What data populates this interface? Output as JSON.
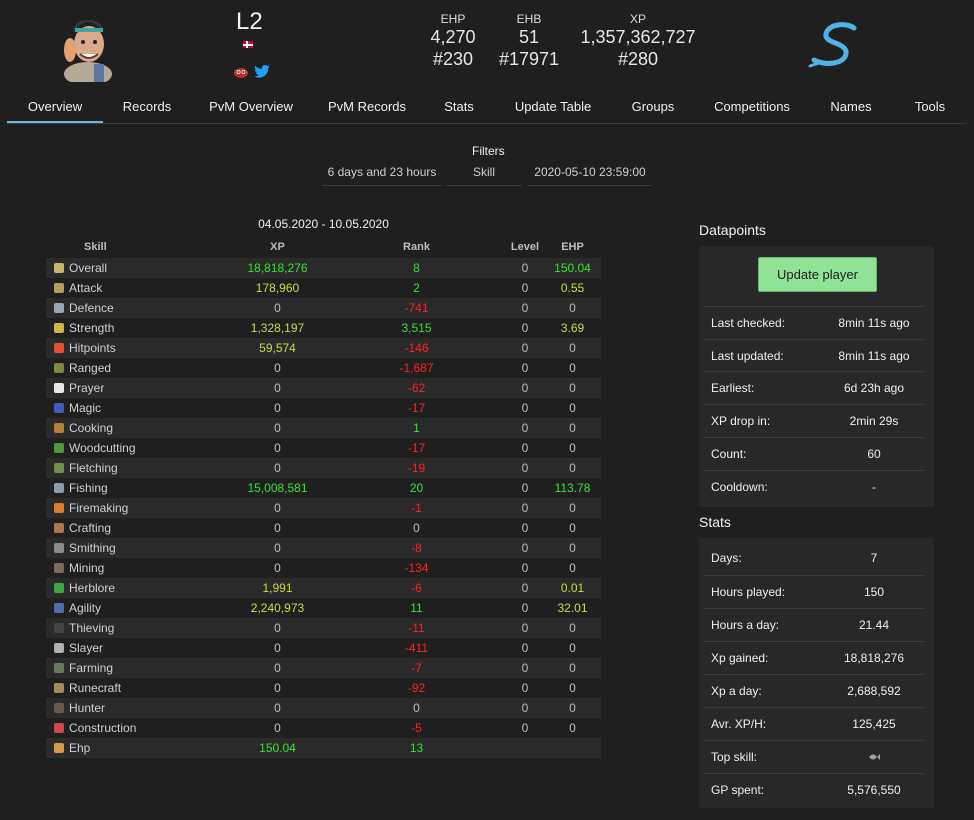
{
  "player": {
    "name": "L2",
    "flag_country": "Norway"
  },
  "stats": {
    "ehp_label": "EHP",
    "ehp_value": "4,270",
    "ehp_rank": "#230",
    "ehb_label": "EHB",
    "ehb_value": "51",
    "ehb_rank": "#17971",
    "xp_label": "XP",
    "xp_value": "1,357,362,727",
    "xp_rank": "#280"
  },
  "nav": {
    "tabs": [
      {
        "label": "Overview",
        "active": true
      },
      {
        "label": "Records"
      },
      {
        "label": "PvM Overview"
      },
      {
        "label": "PvM Records"
      },
      {
        "label": "Stats"
      },
      {
        "label": "Update Table"
      },
      {
        "label": "Groups"
      },
      {
        "label": "Competitions"
      },
      {
        "label": "Names"
      },
      {
        "label": "Tools"
      }
    ]
  },
  "filters": {
    "title": "Filters",
    "period": "6 days and 23 hours",
    "type": "Skill",
    "date": "2020-05-10 23:59:00"
  },
  "table": {
    "date_range": "04.05.2020 - 10.05.2020",
    "headers": {
      "skill": "Skill",
      "xp": "XP",
      "rank": "Rank",
      "level": "Level",
      "ehp": "EHP"
    },
    "rows": [
      {
        "skill": "Overall",
        "xp": "18,818,276",
        "rank": "8",
        "level": "0",
        "ehp": "150.04"
      },
      {
        "skill": "Attack",
        "xp": "178,960",
        "rank": "2",
        "level": "0",
        "ehp": "0.55"
      },
      {
        "skill": "Defence",
        "xp": "0",
        "rank": "-741",
        "level": "0",
        "ehp": "0"
      },
      {
        "skill": "Strength",
        "xp": "1,328,197",
        "rank": "3,515",
        "level": "0",
        "ehp": "3.69"
      },
      {
        "skill": "Hitpoints",
        "xp": "59,574",
        "rank": "-146",
        "level": "0",
        "ehp": "0"
      },
      {
        "skill": "Ranged",
        "xp": "0",
        "rank": "-1,687",
        "level": "0",
        "ehp": "0"
      },
      {
        "skill": "Prayer",
        "xp": "0",
        "rank": "-62",
        "level": "0",
        "ehp": "0"
      },
      {
        "skill": "Magic",
        "xp": "0",
        "rank": "-17",
        "level": "0",
        "ehp": "0"
      },
      {
        "skill": "Cooking",
        "xp": "0",
        "rank": "1",
        "level": "0",
        "ehp": "0"
      },
      {
        "skill": "Woodcutting",
        "xp": "0",
        "rank": "-17",
        "level": "0",
        "ehp": "0"
      },
      {
        "skill": "Fletching",
        "xp": "0",
        "rank": "-19",
        "level": "0",
        "ehp": "0"
      },
      {
        "skill": "Fishing",
        "xp": "15,008,581",
        "rank": "20",
        "level": "0",
        "ehp": "113.78"
      },
      {
        "skill": "Firemaking",
        "xp": "0",
        "rank": "-1",
        "level": "0",
        "ehp": "0"
      },
      {
        "skill": "Crafting",
        "xp": "0",
        "rank": "0",
        "level": "0",
        "ehp": "0"
      },
      {
        "skill": "Smithing",
        "xp": "0",
        "rank": "-8",
        "level": "0",
        "ehp": "0"
      },
      {
        "skill": "Mining",
        "xp": "0",
        "rank": "-134",
        "level": "0",
        "ehp": "0"
      },
      {
        "skill": "Herblore",
        "xp": "1,991",
        "rank": "-6",
        "level": "0",
        "ehp": "0.01"
      },
      {
        "skill": "Agility",
        "xp": "2,240,973",
        "rank": "11",
        "level": "0",
        "ehp": "32.01"
      },
      {
        "skill": "Thieving",
        "xp": "0",
        "rank": "-11",
        "level": "0",
        "ehp": "0"
      },
      {
        "skill": "Slayer",
        "xp": "0",
        "rank": "-411",
        "level": "0",
        "ehp": "0"
      },
      {
        "skill": "Farming",
        "xp": "0",
        "rank": "-7",
        "level": "0",
        "ehp": "0"
      },
      {
        "skill": "Runecraft",
        "xp": "0",
        "rank": "-92",
        "level": "0",
        "ehp": "0"
      },
      {
        "skill": "Hunter",
        "xp": "0",
        "rank": "0",
        "level": "0",
        "ehp": "0"
      },
      {
        "skill": "Construction",
        "xp": "0",
        "rank": "-5",
        "level": "0",
        "ehp": "0"
      },
      {
        "skill": "Ehp",
        "xp": "150.04",
        "rank": "13",
        "level": "",
        "ehp": ""
      }
    ]
  },
  "datapoints": {
    "title": "Datapoints",
    "update_button": "Update player",
    "rows": [
      {
        "label": "Last checked:",
        "value": "8min 11s ago"
      },
      {
        "label": "Last updated:",
        "value": "8min 11s ago"
      },
      {
        "label": "Earliest:",
        "value": "6d 23h ago"
      },
      {
        "label": "XP drop in:",
        "value": "2min 29s"
      },
      {
        "label": "Count:",
        "value": "60"
      },
      {
        "label": "Cooldown:",
        "value": "-"
      }
    ]
  },
  "stats_panel": {
    "title": "Stats",
    "rows": [
      {
        "label": "Days:",
        "value": "7"
      },
      {
        "label": "Hours played:",
        "value": "150"
      },
      {
        "label": "Hours a day:",
        "value": "21.44"
      },
      {
        "label": "Xp gained:",
        "value": "18,818,276"
      },
      {
        "label": "Xp a day:",
        "value": "2,688,592"
      },
      {
        "label": "Avr. XP/H:",
        "value": "125,425"
      },
      {
        "label": "Top skill:",
        "value": "",
        "icon": "fishing-icon"
      },
      {
        "label": "GP spent:",
        "value": "5,576,550"
      }
    ]
  },
  "colors": {
    "positive": "#2fe52f",
    "partial": "#cddc39",
    "negative": "#ff2222",
    "accent": "#6fb6de",
    "button": "#90e295"
  }
}
